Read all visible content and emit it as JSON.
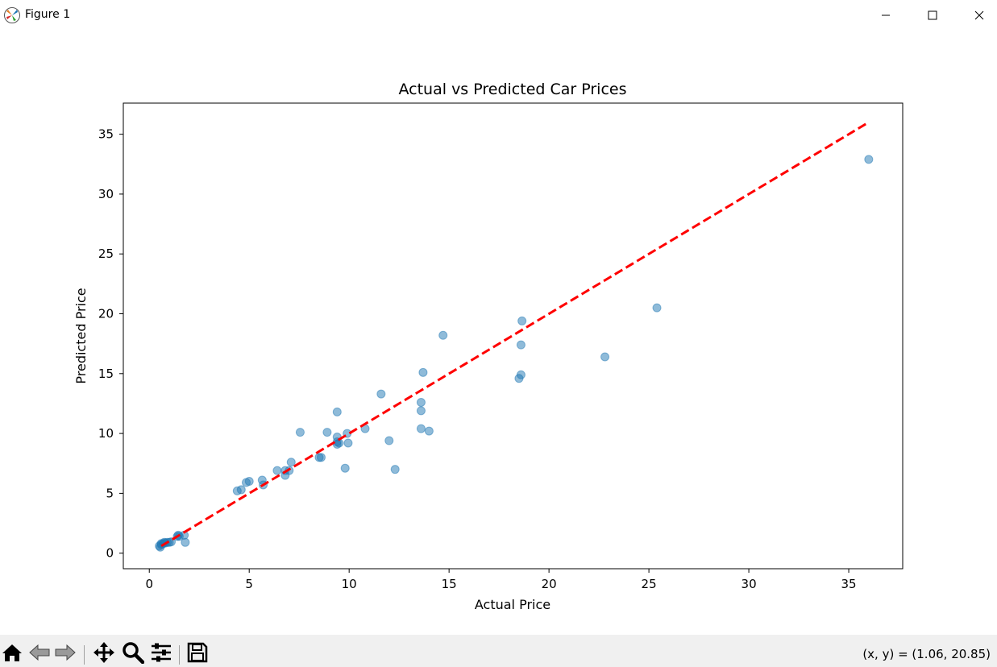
{
  "window": {
    "title": "Figure 1",
    "icons": {
      "app": "matplotlib-icon",
      "minimize": "minimize-icon",
      "maximize": "maximize-icon",
      "close": "close-icon"
    }
  },
  "toolbar": {
    "buttons": [
      {
        "name": "home",
        "icon": "home-icon"
      },
      {
        "name": "back",
        "icon": "back-arrow-icon"
      },
      {
        "name": "forward",
        "icon": "forward-arrow-icon"
      },
      {
        "name": "pan",
        "icon": "move-icon"
      },
      {
        "name": "zoom",
        "icon": "magnifier-icon"
      },
      {
        "name": "configure",
        "icon": "sliders-icon"
      },
      {
        "name": "save",
        "icon": "floppy-disk-icon"
      }
    ],
    "coords": "(x, y) = (1.06, 20.85)"
  },
  "chart_data": {
    "type": "scatter",
    "title": "Actual vs Predicted Car Prices",
    "xlabel": "Actual Price",
    "ylabel": "Predicted Price",
    "xlim": [
      -1.3,
      37.7
    ],
    "ylim": [
      -1.3,
      37.6
    ],
    "xticks": [
      0,
      5,
      10,
      15,
      20,
      25,
      30,
      35
    ],
    "yticks": [
      0,
      5,
      10,
      15,
      20,
      25,
      30,
      35
    ],
    "grid": false,
    "marker_color": "#1f77b4",
    "marker_alpha": 0.5,
    "line_color": "#ff0000",
    "points": [
      [
        36.0,
        32.9
      ],
      [
        25.4,
        20.5
      ],
      [
        22.8,
        16.4
      ],
      [
        18.65,
        19.4
      ],
      [
        18.6,
        17.4
      ],
      [
        18.6,
        14.9
      ],
      [
        18.5,
        14.6
      ],
      [
        14.7,
        18.2
      ],
      [
        13.7,
        15.1
      ],
      [
        13.6,
        12.6
      ],
      [
        13.6,
        11.9
      ],
      [
        13.6,
        10.4
      ],
      [
        14.0,
        10.2
      ],
      [
        11.6,
        13.3
      ],
      [
        12.0,
        9.4
      ],
      [
        12.3,
        7.0
      ],
      [
        10.8,
        10.4
      ],
      [
        9.4,
        11.8
      ],
      [
        9.9,
        10.0
      ],
      [
        9.4,
        9.7
      ],
      [
        9.4,
        9.3
      ],
      [
        9.4,
        9.1
      ],
      [
        9.5,
        9.2
      ],
      [
        9.95,
        9.2
      ],
      [
        8.9,
        10.1
      ],
      [
        9.8,
        7.1
      ],
      [
        8.5,
        8.0
      ],
      [
        8.6,
        8.0
      ],
      [
        7.55,
        10.1
      ],
      [
        7.1,
        7.6
      ],
      [
        7.0,
        6.9
      ],
      [
        6.8,
        6.5
      ],
      [
        6.4,
        6.9
      ],
      [
        6.8,
        6.9
      ],
      [
        5.65,
        6.1
      ],
      [
        5.7,
        5.7
      ],
      [
        5.0,
        6.0
      ],
      [
        4.85,
        5.9
      ],
      [
        4.6,
        5.3
      ],
      [
        4.4,
        5.2
      ],
      [
        1.8,
        0.9
      ],
      [
        1.75,
        1.5
      ],
      [
        1.45,
        1.5
      ],
      [
        1.4,
        1.4
      ],
      [
        1.5,
        1.4
      ],
      [
        1.1,
        0.95
      ],
      [
        0.9,
        0.9
      ],
      [
        0.8,
        0.85
      ],
      [
        0.7,
        0.8
      ],
      [
        0.6,
        0.7
      ],
      [
        0.5,
        0.6
      ],
      [
        0.55,
        0.5
      ],
      [
        0.6,
        0.8
      ],
      [
        0.75,
        0.9
      ],
      [
        1.0,
        0.9
      ]
    ],
    "reference_line": {
      "x": [
        0.6,
        36.0
      ],
      "y": [
        0.6,
        36.0
      ]
    }
  }
}
